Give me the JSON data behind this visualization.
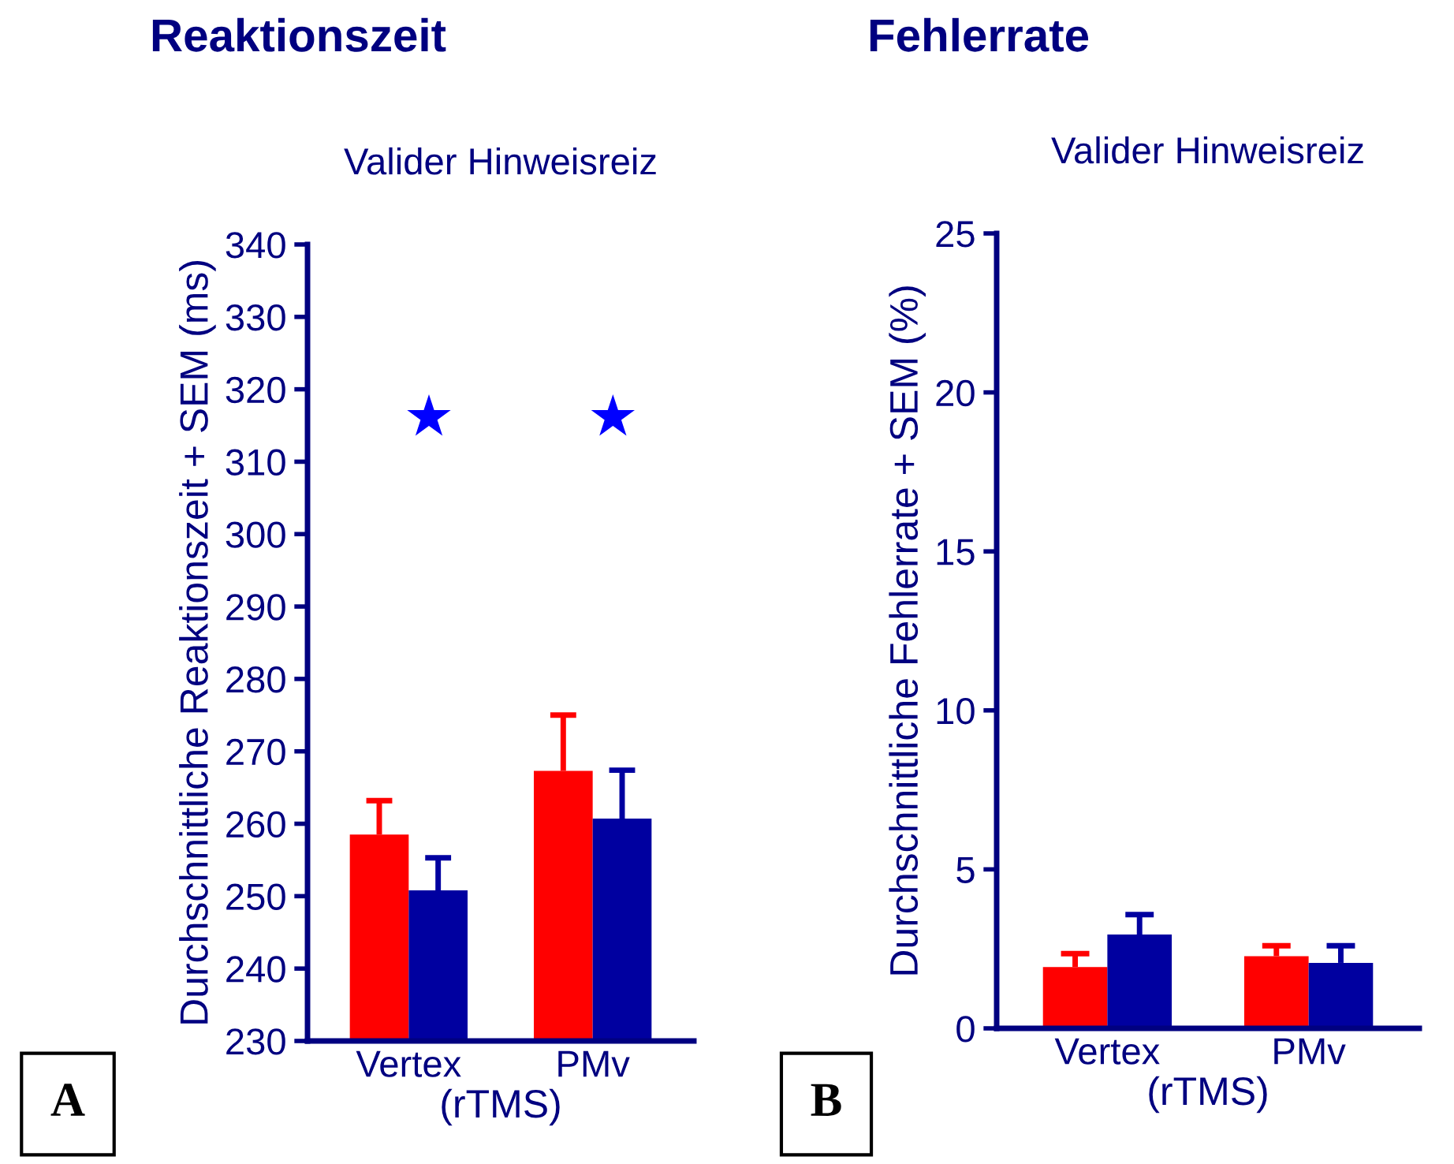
{
  "chart_data": [
    {
      "type": "bar",
      "title": "Reaktionszeit",
      "subtitle": "Valider Hinweisreiz",
      "ylabel": "Durchschnittliche Reaktionszeit + SEM (ms)",
      "xlabel": "(rTMS)",
      "categories": [
        "Vertex",
        "PMv"
      ],
      "series": [
        {
          "color": "#ff0000",
          "values": [
            258.5,
            267.3
          ],
          "errors": [
            [
              258.5,
              263.2
            ],
            [
              267.3,
              275.0
            ]
          ]
        },
        {
          "color": "#0000a0",
          "values": [
            250.8,
            260.7
          ],
          "errors": [
            [
              250.8,
              255.3
            ],
            [
              260.7,
              267.4
            ]
          ]
        }
      ],
      "ylim": [
        230,
        340
      ],
      "yticks": [
        230,
        240,
        250,
        260,
        270,
        280,
        290,
        300,
        310,
        320,
        330,
        340
      ],
      "annotations": [
        "★",
        "★",
        "A"
      ]
    },
    {
      "type": "bar",
      "title": "Fehlerrate",
      "subtitle": "Valider Hinweisreiz",
      "ylabel": "Durchschnittliche Fehlerrate + SEM (%)",
      "xlabel": "(rTMS)",
      "categories": [
        "Vertex",
        "PMv"
      ],
      "series": [
        {
          "color": "#ff0000",
          "values": [
            1.93,
            2.27
          ],
          "errors": [
            [
              1.93,
              2.35
            ],
            [
              2.27,
              2.6
            ]
          ]
        },
        {
          "color": "#0000a0",
          "values": [
            2.95,
            2.06
          ],
          "errors": [
            [
              2.95,
              3.58
            ],
            [
              2.06,
              2.6
            ]
          ]
        }
      ],
      "ylim": [
        0,
        25
      ],
      "yticks": [
        0,
        5,
        10,
        15,
        20,
        25
      ],
      "annotations": [
        "B"
      ]
    }
  ]
}
